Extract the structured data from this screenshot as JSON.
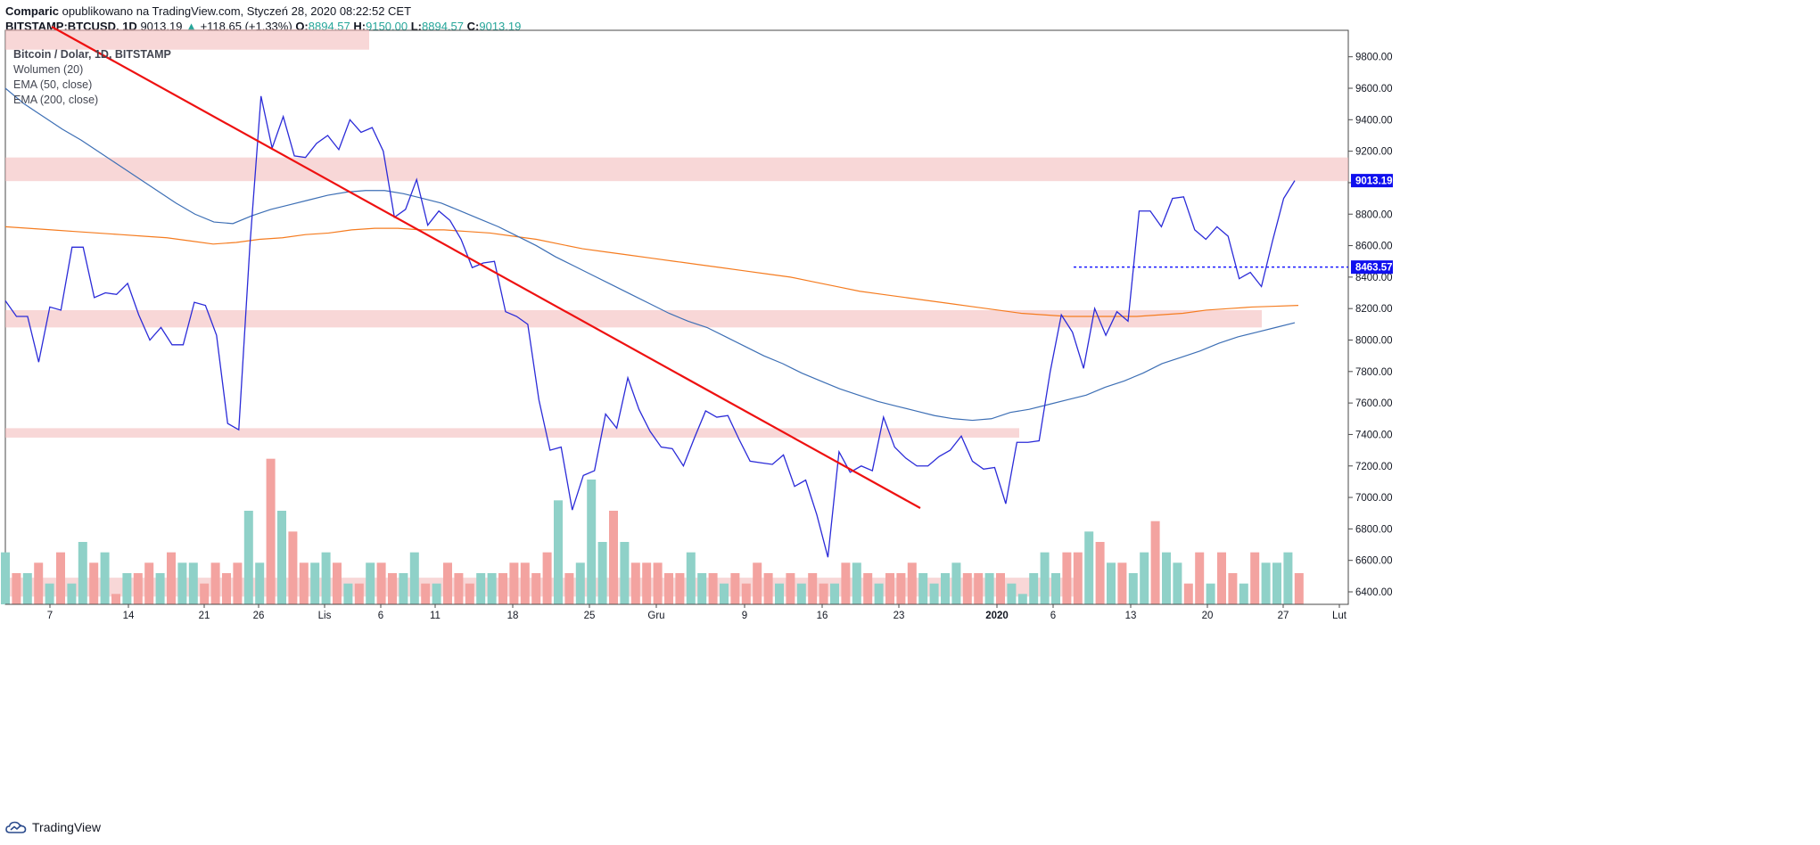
{
  "header": {
    "author": "Comparic",
    "published": "opublikowano na TradingView.com, Styczeń 28, 2020 08:22:52 CET",
    "symbol": "BITSTAMP:BTCUSD, 1D",
    "last": "9013.19",
    "change": "+118.65 (+1.33%)",
    "o_label": "O:",
    "o": "8894.57",
    "h_label": "H:",
    "h": "9150.00",
    "l_label": "L:",
    "l": "8894.57",
    "c_label": "C:",
    "c": "9013.19"
  },
  "legend": {
    "title": "Bitcoin / Dolar, 1D, BITSTAMP",
    "vol": "Wolumen (20)",
    "ema50": "EMA (50, close)",
    "ema200": "EMA (200, close)"
  },
  "footer": {
    "brand": "TradingView"
  },
  "colors": {
    "price": "#2b2bd8",
    "ema50": "#3d6fb5",
    "ema200": "#f57c20",
    "trend": "#ee1111",
    "zone": "#f4bcbc",
    "vol_up": "#8fd1c8",
    "vol_down": "#f3a3a0",
    "hline": "#1a1aff",
    "axis": "#131722"
  },
  "chart_data": {
    "type": "line",
    "x_ticks": [
      "7",
      "14",
      "21",
      "26",
      "Lis",
      "6",
      "11",
      "18",
      "25",
      "Gru",
      "9",
      "16",
      "23",
      "2020",
      "6",
      "13",
      "20",
      "27",
      "Lut"
    ],
    "y_ticks": [
      "6400.00",
      "6600.00",
      "6800.00",
      "7000.00",
      "7200.00",
      "7400.00",
      "7600.00",
      "7800.00",
      "8000.00",
      "8200.00",
      "8400.00",
      "8600.00",
      "8800.00",
      "9000.00",
      "9200.00",
      "9400.00",
      "9600.00",
      "9800.00"
    ],
    "ylim": [
      6300,
      9980
    ],
    "price_label": "9013.19",
    "hline_label": "8463.57",
    "hline_value": 8463.57,
    "series": [
      {
        "name": "Bitcoin / Dolar, 1D, BITSTAMP",
        "values": [
          8250,
          8150,
          8150,
          7860,
          8210,
          8190,
          8590,
          8590,
          8270,
          8300,
          8290,
          8360,
          8160,
          8000,
          8080,
          7970,
          7970,
          8240,
          8220,
          8030,
          7470,
          7430,
          8600,
          9550,
          9220,
          9420,
          9170,
          9160,
          9250,
          9300,
          9210,
          9400,
          9320,
          9350,
          9200,
          8780,
          8830,
          9020,
          8730,
          8820,
          8760,
          8640,
          8460,
          8490,
          8500,
          8180,
          8150,
          8100,
          7620,
          7300,
          7320,
          6920,
          7140,
          7170,
          7530,
          7440,
          7760,
          7560,
          7420,
          7320,
          7310,
          7200,
          7380,
          7550,
          7510,
          7520,
          7370,
          7230,
          7220,
          7210,
          7270,
          7070,
          7110,
          6890,
          6620,
          7290,
          7160,
          7200,
          7170,
          7510,
          7320,
          7250,
          7200,
          7200,
          7260,
          7300,
          7390,
          7230,
          7180,
          7190,
          6960,
          7350,
          7350,
          7360,
          7800,
          8160,
          8050,
          7820,
          8200,
          8030,
          8180,
          8120,
          8820,
          8820,
          8720,
          8900,
          8910,
          8700,
          8640,
          8720,
          8660,
          8390,
          8430,
          8340,
          8630,
          8900,
          9013.19
        ]
      },
      {
        "name": "EMA (50, close)",
        "values": [
          9600,
          9500,
          9420,
          9340,
          9270,
          9190,
          9110,
          9030,
          8950,
          8870,
          8800,
          8750,
          8740,
          8790,
          8830,
          8860,
          8890,
          8920,
          8940,
          8950,
          8950,
          8930,
          8900,
          8870,
          8820,
          8770,
          8720,
          8660,
          8600,
          8530,
          8470,
          8410,
          8350,
          8290,
          8230,
          8170,
          8120,
          8080,
          8020,
          7960,
          7900,
          7850,
          7790,
          7740,
          7690,
          7650,
          7610,
          7580,
          7550,
          7520,
          7500,
          7490,
          7500,
          7540,
          7560,
          7590,
          7620,
          7650,
          7700,
          7740,
          7790,
          7850,
          7890,
          7930,
          7980,
          8020,
          8050,
          8080,
          8110
        ]
      },
      {
        "name": "EMA (200, close)",
        "values": [
          8720,
          8710,
          8700,
          8690,
          8680,
          8670,
          8660,
          8650,
          8630,
          8610,
          8620,
          8640,
          8650,
          8670,
          8680,
          8700,
          8710,
          8710,
          8700,
          8700,
          8690,
          8680,
          8660,
          8640,
          8610,
          8580,
          8560,
          8540,
          8520,
          8500,
          8480,
          8460,
          8440,
          8420,
          8400,
          8370,
          8340,
          8310,
          8290,
          8270,
          8250,
          8230,
          8210,
          8190,
          8170,
          8160,
          8150,
          8150,
          8150,
          8150,
          8160,
          8170,
          8190,
          8200,
          8210,
          8215,
          8220
        ]
      },
      {
        "name": "Wolumen (20)",
        "values": [
          5,
          3,
          3,
          4,
          2,
          5,
          2,
          6,
          4,
          5,
          1,
          3,
          3,
          4,
          3,
          5,
          4,
          4,
          2,
          4,
          3,
          4,
          9,
          4,
          14,
          9,
          7,
          4,
          4,
          5,
          4,
          2,
          2,
          4,
          4,
          3,
          3,
          5,
          2,
          2,
          4,
          3,
          2,
          3,
          3,
          3,
          4,
          4,
          3,
          5,
          10,
          3,
          4,
          12,
          6,
          9,
          6,
          4,
          4,
          4,
          3,
          3,
          5,
          3,
          3,
          2,
          3,
          2,
          4,
          3,
          2,
          3,
          2,
          3,
          2,
          2,
          4,
          4,
          3,
          2,
          3,
          3,
          4,
          3,
          2,
          3,
          4,
          3,
          3,
          3,
          3,
          2,
          1,
          3,
          5,
          3,
          5,
          5,
          7,
          6,
          4,
          4,
          3,
          5,
          8,
          5,
          4,
          2,
          5,
          2,
          5,
          3,
          2,
          5,
          4,
          4,
          5,
          3
        ]
      }
    ]
  }
}
